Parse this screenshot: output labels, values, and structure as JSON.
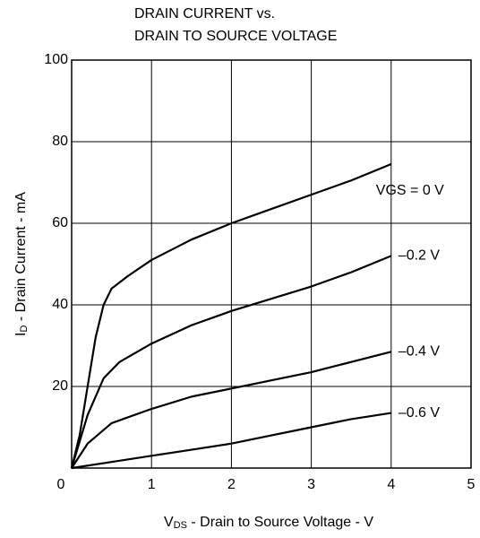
{
  "chart_data": {
    "type": "line",
    "title": [
      "DRAIN CURRENT vs.",
      "DRAIN TO SOURCE VOLTAGE"
    ],
    "x_label": [
      "V",
      "DS",
      " - Drain to Source Voltage - V"
    ],
    "y_label": [
      "I",
      "D",
      " - Drain Current - mA"
    ],
    "xlim": [
      0,
      5
    ],
    "ylim": [
      0,
      100
    ],
    "xticks": [
      0,
      1,
      2,
      3,
      4,
      5
    ],
    "yticks": [
      20,
      40,
      60,
      80,
      100
    ],
    "grid": true,
    "series": [
      {
        "name": "VGS = 0 V",
        "color": "#000000",
        "x": [
          0,
          0.1,
          0.2,
          0.3,
          0.4,
          0.5,
          0.7,
          1,
          1.5,
          2,
          2.5,
          3,
          3.5,
          4
        ],
        "values": [
          0,
          8,
          20,
          32,
          40,
          44,
          47,
          51,
          56,
          60,
          63.5,
          67,
          70.5,
          74.5
        ]
      },
      {
        "name": "–0.2 V",
        "color": "#000000",
        "x": [
          0,
          0.2,
          0.4,
          0.6,
          1,
          1.5,
          2,
          2.5,
          3,
          3.5,
          4
        ],
        "values": [
          0,
          13,
          22,
          26,
          30.5,
          35,
          38.5,
          41.5,
          44.5,
          48,
          52
        ]
      },
      {
        "name": "–0.4 V",
        "color": "#000000",
        "x": [
          0,
          0.2,
          0.5,
          1,
          1.5,
          2,
          2.5,
          3,
          3.5,
          4
        ],
        "values": [
          0,
          6,
          11,
          14.5,
          17.5,
          19.5,
          21.5,
          23.5,
          26,
          28.5
        ]
      },
      {
        "name": "–0.6 V",
        "color": "#000000",
        "x": [
          0,
          0.5,
          1,
          1.5,
          2,
          2.5,
          3,
          3.5,
          4
        ],
        "values": [
          0,
          1.5,
          3,
          4.5,
          6,
          8,
          10,
          12,
          13.5
        ]
      }
    ]
  }
}
